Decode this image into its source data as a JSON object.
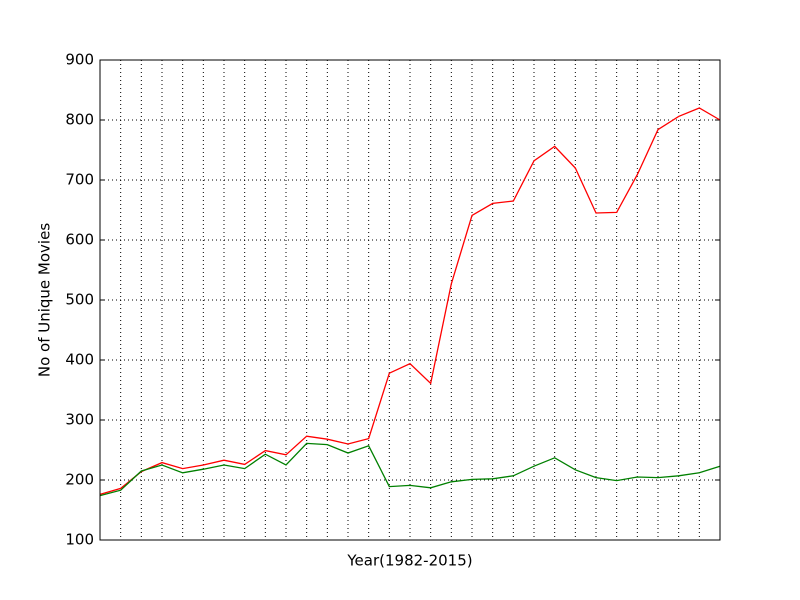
{
  "chart_data": {
    "type": "line",
    "xlabel": "Year(1982-2015)",
    "ylabel": "No of Unique Movies",
    "categories": [
      null,
      null,
      null,
      null,
      null,
      null,
      null,
      null,
      null,
      null,
      null,
      null,
      null,
      null,
      null,
      null,
      null,
      null,
      null,
      null,
      null,
      null,
      null,
      null,
      null,
      null,
      null,
      null,
      null,
      null,
      null
    ],
    "series": [
      {
        "color": "#ff0000",
        "values": [
          176,
          186,
          214,
          229,
          219,
          225,
          233,
          226,
          249,
          242,
          273,
          268,
          260,
          269,
          378,
          394,
          361,
          527,
          641,
          661,
          665,
          732,
          756,
          720,
          645,
          646,
          709,
          784,
          806,
          820,
          800
        ]
      },
      {
        "color": "#008000",
        "values": [
          174,
          183,
          215,
          225,
          212,
          218,
          225,
          219,
          243,
          225,
          261,
          259,
          245,
          257,
          189,
          191,
          187,
          197,
          201,
          202,
          207,
          223,
          237,
          217,
          204,
          199,
          205,
          204,
          207,
          212,
          223
        ]
      }
    ],
    "ylim": [
      100,
      900
    ],
    "yticks": [
      100,
      200,
      300,
      400,
      500,
      600,
      700,
      800,
      900
    ],
    "grid": true
  }
}
